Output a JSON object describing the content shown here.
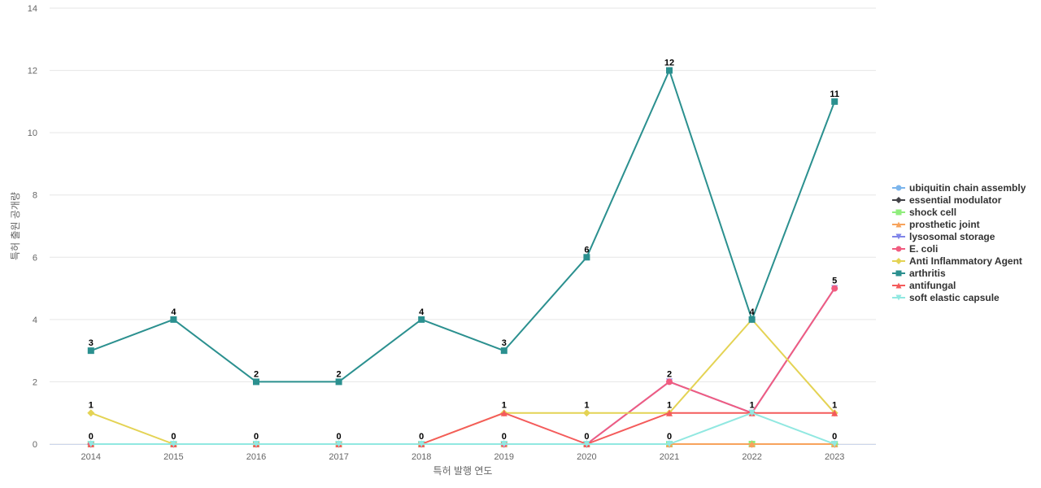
{
  "chart_data": {
    "type": "line",
    "title": "",
    "xlabel": "특허 발행 연도",
    "ylabel": "특허 출원 공개량",
    "x": [
      "2014",
      "2015",
      "2016",
      "2017",
      "2018",
      "2019",
      "2020",
      "2021",
      "2022",
      "2023"
    ],
    "ylim": [
      0,
      14
    ],
    "yticks": [
      0,
      2,
      4,
      6,
      8,
      10,
      12,
      14
    ],
    "grid": true,
    "legend_position": "right",
    "series": [
      {
        "name": "ubiquitin chain assembly",
        "color": "#7cb5ec",
        "marker": "circle",
        "values": [
          0,
          0,
          0,
          0,
          0,
          0,
          0,
          0,
          0,
          0
        ]
      },
      {
        "name": "essential modulator",
        "color": "#434348",
        "marker": "diamond",
        "values": [
          0,
          0,
          0,
          0,
          0,
          0,
          0,
          0,
          0,
          0
        ]
      },
      {
        "name": "shock cell",
        "color": "#90ed7d",
        "marker": "square",
        "values": [
          0,
          0,
          0,
          0,
          0,
          0,
          0,
          0,
          0,
          0
        ]
      },
      {
        "name": "prosthetic joint",
        "color": "#f7a35c",
        "marker": "triangle",
        "values": [
          0,
          0,
          0,
          0,
          0,
          0,
          0,
          0,
          0,
          0
        ]
      },
      {
        "name": "lysosomal storage",
        "color": "#8085e9",
        "marker": "triangle-down",
        "values": [
          0,
          0,
          0,
          0,
          0,
          0,
          0,
          2,
          1,
          5
        ]
      },
      {
        "name": "E. coli",
        "color": "#f15c80",
        "marker": "circle",
        "values": [
          0,
          0,
          0,
          0,
          0,
          0,
          0,
          2,
          1,
          5
        ]
      },
      {
        "name": "Anti Inflammatory Agent",
        "color": "#e4d354",
        "marker": "diamond",
        "values": [
          1,
          0,
          0,
          0,
          0,
          1,
          1,
          1,
          4,
          1
        ]
      },
      {
        "name": "arthritis",
        "color": "#2b908f",
        "marker": "square",
        "values": [
          3,
          4,
          2,
          2,
          4,
          3,
          6,
          12,
          4,
          11
        ]
      },
      {
        "name": "antifungal",
        "color": "#f45b5b",
        "marker": "triangle",
        "values": [
          0,
          0,
          0,
          0,
          0,
          1,
          0,
          1,
          1,
          1
        ]
      },
      {
        "name": "soft elastic capsule",
        "color": "#91e8e1",
        "marker": "triangle-down",
        "values": [
          0,
          0,
          0,
          0,
          0,
          0,
          0,
          0,
          1,
          0
        ]
      }
    ],
    "data_labels": [
      {
        "x": "2014",
        "values": [
          "3",
          "1",
          "0"
        ]
      },
      {
        "x": "2015",
        "values": [
          "4",
          "0"
        ]
      },
      {
        "x": "2016",
        "values": [
          "2",
          "0"
        ]
      },
      {
        "x": "2017",
        "values": [
          "2",
          "0"
        ]
      },
      {
        "x": "2018",
        "values": [
          "4",
          "0"
        ]
      },
      {
        "x": "2019",
        "values": [
          "3",
          "1",
          "0"
        ]
      },
      {
        "x": "2020",
        "values": [
          "6",
          "1",
          "0"
        ]
      },
      {
        "x": "2021",
        "values": [
          "12",
          "2",
          "1",
          "0"
        ]
      },
      {
        "x": "2022",
        "values": [
          "4",
          "1"
        ]
      },
      {
        "x": "2023",
        "values": [
          "11",
          "5",
          "1",
          "0"
        ]
      }
    ]
  }
}
